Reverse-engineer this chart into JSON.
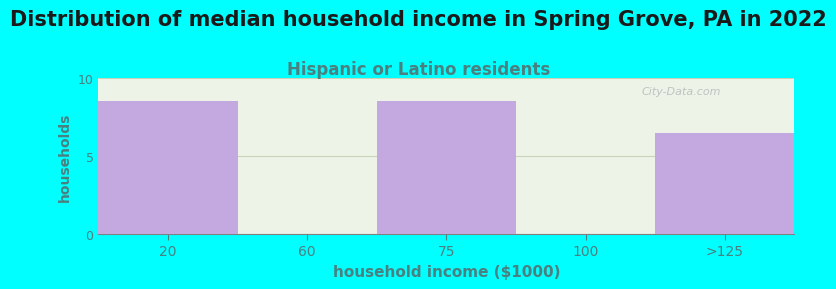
{
  "title": "Distribution of median household income in Spring Grove, PA in 2022",
  "subtitle": "Hispanic or Latino residents",
  "xlabel": "household income ($1000)",
  "ylabel": "households",
  "categories": [
    "20",
    "60",
    "75",
    "100",
    ">125"
  ],
  "values": [
    8.5,
    0,
    8.5,
    0,
    6.5
  ],
  "bar_color": "#c4a8e0",
  "background_color": "#00FFFF",
  "plot_bg_color": "#eef3e8",
  "ylim": [
    0,
    10
  ],
  "yticks": [
    0,
    5,
    10
  ],
  "title_fontsize": 15,
  "subtitle_fontsize": 12,
  "subtitle_color": "#4a8080",
  "tick_color": "#4a8080",
  "ylabel_color": "#4a8080",
  "xlabel_color": "#4a8080",
  "title_color": "#1a1a1a",
  "watermark": "City-Data.com"
}
